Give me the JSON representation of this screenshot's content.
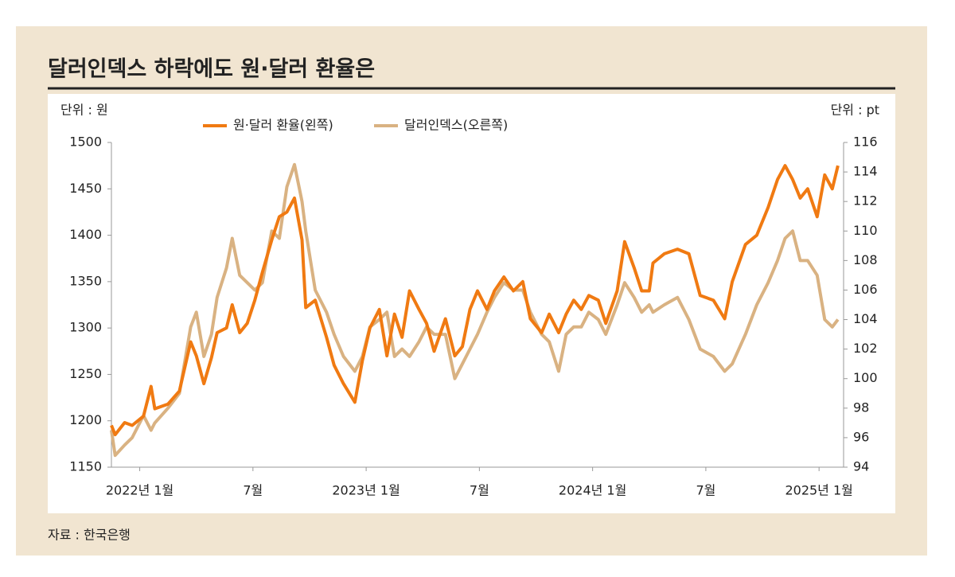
{
  "chart_data": {
    "type": "line",
    "title": "달러인덱스 하락에도 원·달러 환율은",
    "y_unit": "단위 : 원",
    "y2_unit": "단위 : pt",
    "source": "자료 : 한국은행",
    "x": [
      -1.5,
      -1.3,
      -0.8,
      -0.4,
      0.2,
      0.6,
      0.8,
      1.5,
      2.1,
      2.7,
      3.0,
      3.4,
      3.8,
      4.1,
      4.6,
      4.9,
      5.3,
      5.7,
      6.1,
      6.5,
      7.0,
      7.4,
      7.8,
      8.2,
      8.6,
      8.8,
      9.3,
      9.9,
      10.3,
      10.8,
      11.4,
      11.8,
      12.2,
      12.7,
      13.1,
      13.5,
      13.9,
      14.3,
      14.8,
      15.2,
      15.6,
      16.2,
      16.7,
      17.1,
      17.5,
      17.9,
      18.4,
      18.8,
      19.3,
      19.8,
      20.3,
      20.7,
      21.3,
      21.7,
      22.2,
      22.6,
      23.0,
      23.4,
      23.8,
      24.3,
      24.7,
      25.3,
      25.7,
      26.2,
      26.6,
      27.0,
      27.2,
      27.8,
      28.5,
      29.1,
      29.7,
      30.4,
      31.0,
      31.4,
      32.1,
      32.7,
      33.3,
      33.8,
      34.2,
      34.6,
      35.0,
      35.4,
      35.9,
      36.3,
      36.7,
      37.0
    ],
    "series": [
      {
        "name": "원·달러 환율(왼쪽)",
        "color": "#f07a12",
        "values": [
          1195,
          1185,
          1198,
          1195,
          1205,
          1237,
          1213,
          1218,
          1232,
          1285,
          1270,
          1240,
          1268,
          1295,
          1300,
          1325,
          1295,
          1305,
          1330,
          1360,
          1395,
          1420,
          1425,
          1440,
          1395,
          1322,
          1330,
          1290,
          1260,
          1240,
          1220,
          1265,
          1300,
          1320,
          1270,
          1315,
          1290,
          1340,
          1320,
          1305,
          1275,
          1310,
          1270,
          1280,
          1320,
          1340,
          1320,
          1340,
          1355,
          1340,
          1350,
          1310,
          1295,
          1315,
          1295,
          1315,
          1330,
          1320,
          1335,
          1330,
          1305,
          1340,
          1393,
          1365,
          1340,
          1340,
          1370,
          1380,
          1385,
          1380,
          1335,
          1330,
          1310,
          1350,
          1390,
          1400,
          1430,
          1460,
          1475,
          1460,
          1440,
          1450,
          1420,
          1465,
          1450,
          1475
        ]
      },
      {
        "name": "달러인덱스(오른쪽)",
        "color": "#d9b282",
        "axis": "y2",
        "values": [
          96.5,
          94.8,
          95.5,
          96,
          97.5,
          96.5,
          97,
          98,
          99,
          103.5,
          104.5,
          101.5,
          103,
          105.5,
          107.5,
          109.5,
          107,
          106.5,
          106,
          106.5,
          110,
          109.5,
          113,
          114.5,
          112,
          110,
          106,
          104.5,
          103,
          101.5,
          100.5,
          101.5,
          103.5,
          104,
          104.5,
          101.5,
          102,
          101.5,
          102.5,
          103.5,
          103,
          103,
          100,
          101,
          102,
          103,
          104.5,
          105.5,
          106.5,
          106,
          106,
          104.5,
          103,
          102.5,
          100.5,
          103,
          103.5,
          103.5,
          104.5,
          104,
          103,
          105,
          106.5,
          105.5,
          104.5,
          105,
          104.5,
          105,
          105.5,
          104,
          102,
          101.5,
          100.5,
          101,
          103,
          105,
          106.5,
          108,
          109.5,
          110,
          108,
          108,
          107,
          104,
          103.5,
          104
        ]
      }
    ],
    "xlim": [
      -1.5,
      37.3
    ],
    "xticks": [
      {
        "value": 0,
        "label": "2022년 1월"
      },
      {
        "value": 6,
        "label": "7월"
      },
      {
        "value": 12,
        "label": "2023년 1월"
      },
      {
        "value": 18,
        "label": "7월"
      },
      {
        "value": 24,
        "label": "2024년 1월"
      },
      {
        "value": 30,
        "label": "7월"
      },
      {
        "value": 36,
        "label": "2025년 1월"
      }
    ],
    "ylim": [
      1150,
      1500
    ],
    "yticks": [
      1150,
      1200,
      1250,
      1300,
      1350,
      1400,
      1450,
      1500
    ],
    "y2lim": [
      94,
      116
    ],
    "y2ticks": [
      94,
      96,
      98,
      100,
      102,
      104,
      106,
      108,
      110,
      112,
      114,
      116
    ]
  }
}
